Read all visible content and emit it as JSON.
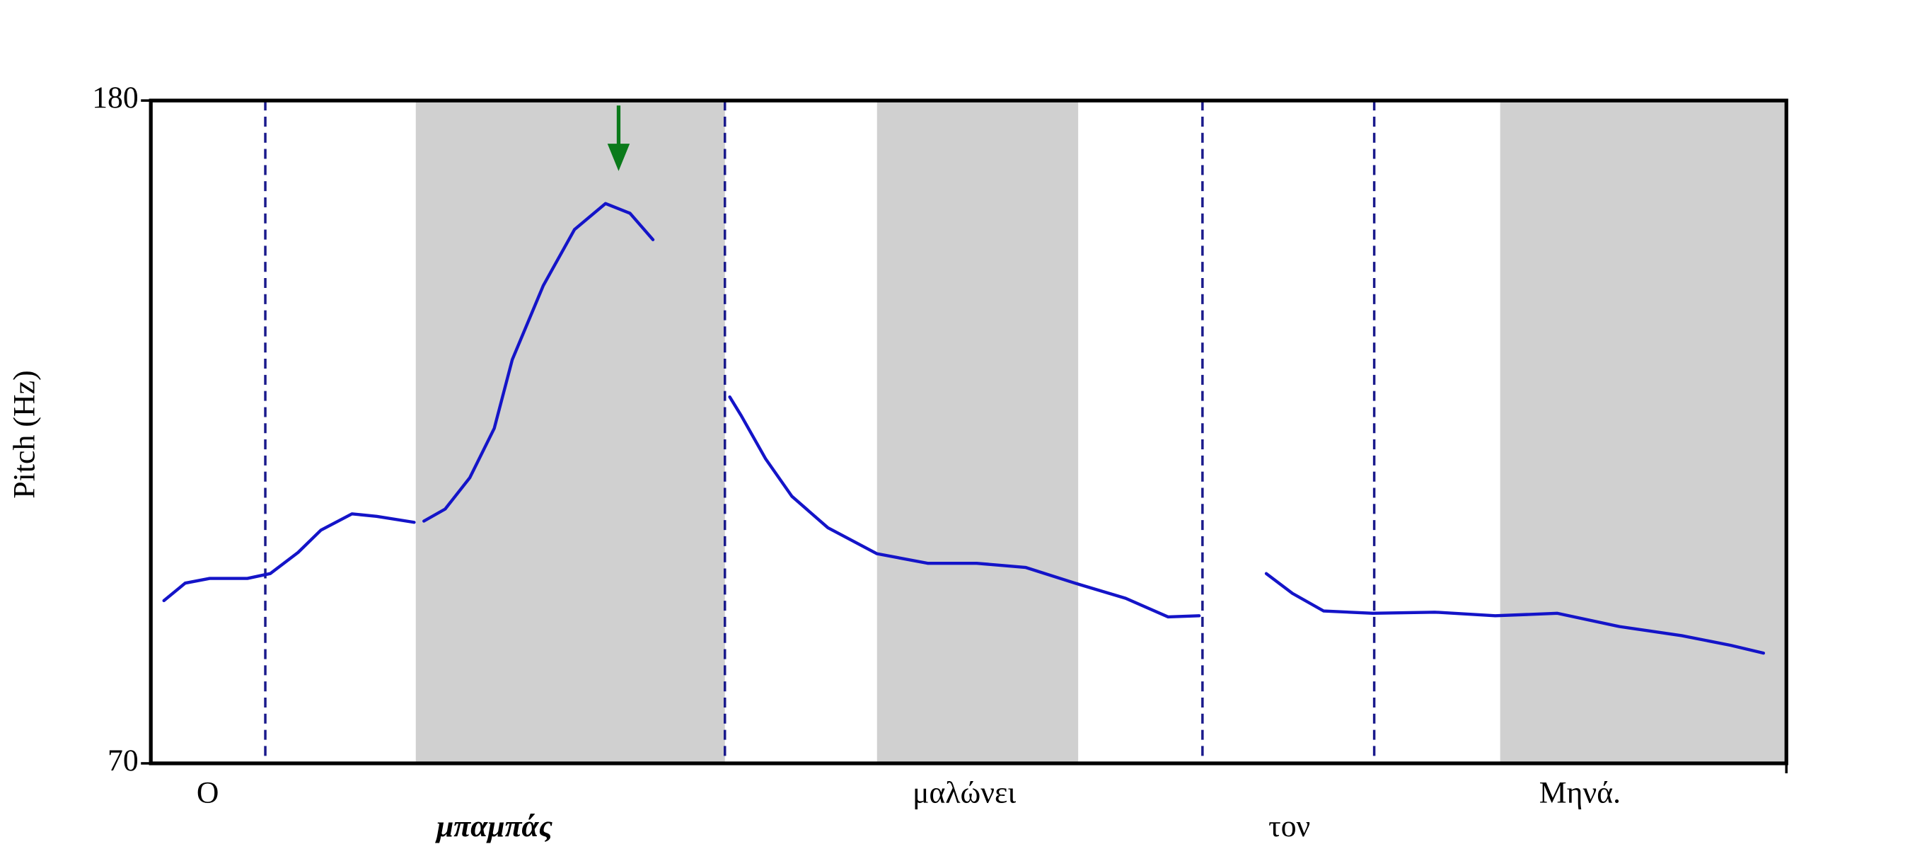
{
  "chart_data": {
    "type": "line",
    "y_label": "Pitch (Hz)",
    "xlim": [
      0,
      100
    ],
    "ylim": [
      70,
      180
    ],
    "yticks": [
      70,
      180
    ],
    "x": [
      0.8,
      2.1,
      3.6,
      5.9,
      7.3,
      9.0,
      10.4,
      12.3,
      13.8,
      16.1,
      null,
      16.7,
      18.0,
      19.5,
      21.0,
      22.1,
      24.0,
      25.9,
      27.8,
      29.3,
      30.7,
      null,
      35.4,
      36.1,
      37.6,
      39.2,
      41.4,
      44.4,
      47.5,
      50.5,
      53.5,
      56.5,
      59.6,
      62.2,
      64.1,
      null,
      68.2,
      69.8,
      71.7,
      74.7,
      78.5,
      82.2,
      86.0,
      89.8,
      93.6,
      96.6,
      98.6
    ],
    "series": [
      {
        "color": "#1414c8",
        "values": [
          97.0,
          99.9,
          100.7,
          100.7,
          101.5,
          105.0,
          108.7,
          111.4,
          111.0,
          110.0,
          null,
          110.2,
          112.2,
          117.4,
          125.6,
          137.0,
          149.3,
          158.6,
          162.9,
          161.3,
          156.9,
          null,
          130.8,
          127.7,
          120.5,
          114.3,
          109.1,
          104.8,
          103.2,
          103.2,
          102.5,
          99.9,
          97.4,
          94.3,
          94.5,
          null,
          101.5,
          98.2,
          95.3,
          94.9,
          95.1,
          94.5,
          94.9,
          92.7,
          91.2,
          89.6,
          88.3
        ]
      }
    ],
    "shaded_regions": [
      [
        16.2,
        35.1
      ],
      [
        44.4,
        56.7
      ],
      [
        82.5,
        100
      ]
    ],
    "shade_color": "#d0d0d0",
    "boundaries": [
      7.0,
      35.1,
      64.3,
      74.8
    ],
    "boundary_color": "#1a1a8c",
    "arrow": {
      "x": 28.6,
      "y": 168.3,
      "color": "#0a7a1a"
    },
    "words": [
      "Ο",
      "μπαμπάς",
      "μαλώνει",
      "τον",
      "Μηνά."
    ]
  }
}
